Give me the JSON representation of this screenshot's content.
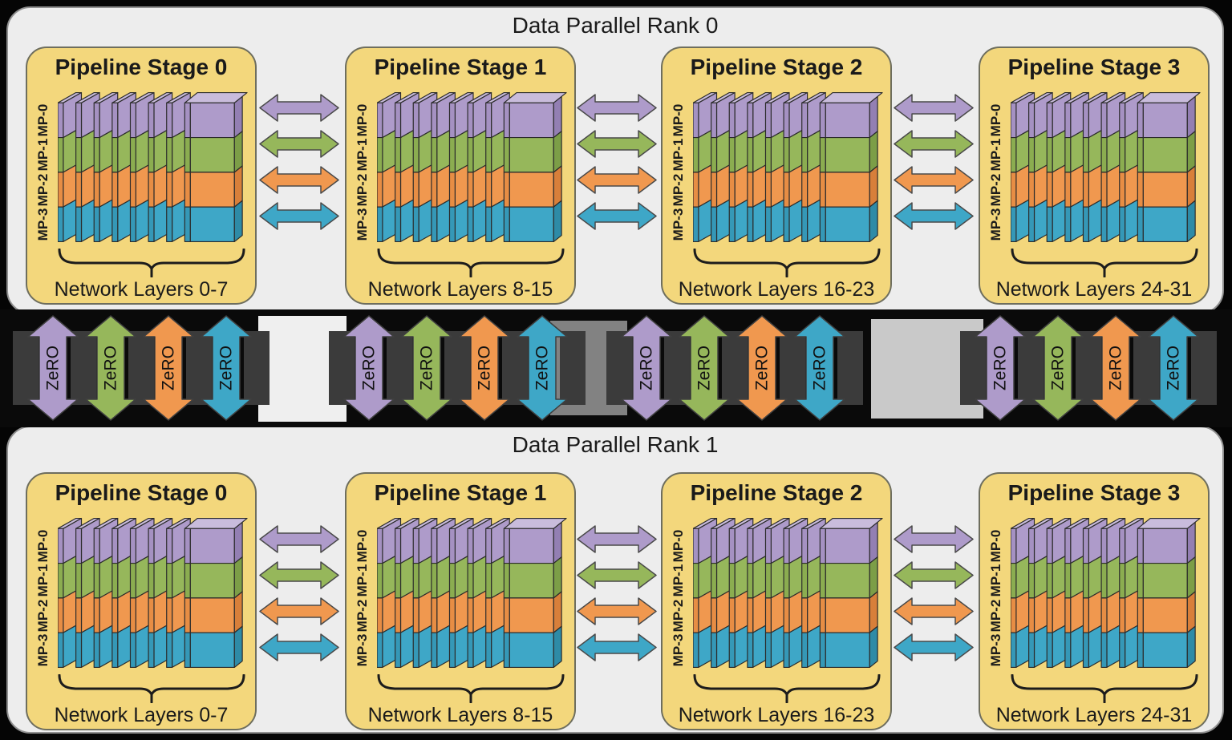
{
  "ranks": [
    {
      "title": "Data Parallel Rank 0",
      "stages": [
        {
          "title": "Pipeline Stage 0",
          "layers_label": "Network Layers 0-7"
        },
        {
          "title": "Pipeline Stage 1",
          "layers_label": "Network Layers 8-15"
        },
        {
          "title": "Pipeline Stage 2",
          "layers_label": "Network Layers 16-23"
        },
        {
          "title": "Pipeline Stage 3",
          "layers_label": "Network Layers 24-31"
        }
      ]
    },
    {
      "title": "Data Parallel Rank 1",
      "stages": [
        {
          "title": "Pipeline Stage 0",
          "layers_label": "Network Layers 0-7"
        },
        {
          "title": "Pipeline Stage 1",
          "layers_label": "Network Layers 8-15"
        },
        {
          "title": "Pipeline Stage 2",
          "layers_label": "Network Layers 16-23"
        },
        {
          "title": "Pipeline Stage 3",
          "layers_label": "Network Layers 24-31"
        }
      ]
    }
  ],
  "mp_labels": [
    "MP-0",
    "MP-1",
    "MP-2",
    "MP-3"
  ],
  "zero": {
    "label": "ZeRO",
    "group_count": 4,
    "arrows_per_group": 4
  },
  "colors": {
    "mp_main": [
      "#AE9BCA",
      "#96B75B",
      "#F0984F",
      "#3EA7C7"
    ],
    "mp_strip": [
      "#A591C2",
      "#8BAD50",
      "#E78D44",
      "#3598B7"
    ],
    "mp_side": [
      "#937FB3",
      "#7C9E47",
      "#D87F3A",
      "#2E8BA7"
    ],
    "slab_top": "#C9BCDC",
    "stage_fill": "#F3D77C",
    "rank_fill": "#EDEDED",
    "band_bar_dark": "#3B3B3B",
    "band_connector_mid": "#828282",
    "band_connector_light": "#C9C9C9",
    "band_connector_pale": "#EFEFEF",
    "background": "#050505"
  }
}
